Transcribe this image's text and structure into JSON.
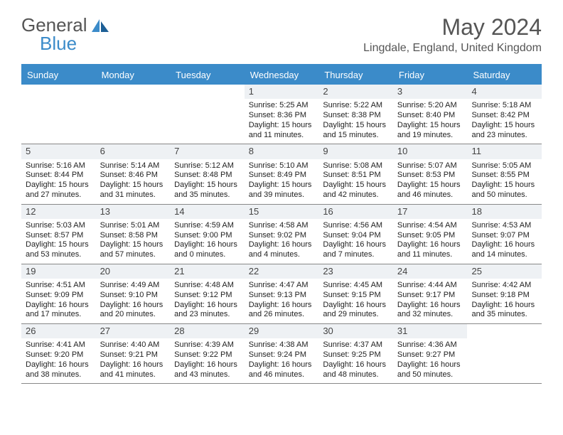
{
  "brand": {
    "general": "General",
    "blue": "Blue"
  },
  "title": "May 2024",
  "location": "Lingdale, England, United Kingdom",
  "colors": {
    "accent": "#3b8bc9",
    "header_bg": "#3b8bc9",
    "daynum_bg": "#eef1f4",
    "rule": "#888888",
    "text": "#333333"
  },
  "dayheads": [
    "Sunday",
    "Monday",
    "Tuesday",
    "Wednesday",
    "Thursday",
    "Friday",
    "Saturday"
  ],
  "weeks": [
    [
      {
        "empty": true
      },
      {
        "empty": true
      },
      {
        "empty": true
      },
      {
        "d": "1",
        "sr": "Sunrise: 5:25 AM",
        "ss": "Sunset: 8:36 PM",
        "dl1": "Daylight: 15 hours",
        "dl2": "and 11 minutes."
      },
      {
        "d": "2",
        "sr": "Sunrise: 5:22 AM",
        "ss": "Sunset: 8:38 PM",
        "dl1": "Daylight: 15 hours",
        "dl2": "and 15 minutes."
      },
      {
        "d": "3",
        "sr": "Sunrise: 5:20 AM",
        "ss": "Sunset: 8:40 PM",
        "dl1": "Daylight: 15 hours",
        "dl2": "and 19 minutes."
      },
      {
        "d": "4",
        "sr": "Sunrise: 5:18 AM",
        "ss": "Sunset: 8:42 PM",
        "dl1": "Daylight: 15 hours",
        "dl2": "and 23 minutes."
      }
    ],
    [
      {
        "d": "5",
        "sr": "Sunrise: 5:16 AM",
        "ss": "Sunset: 8:44 PM",
        "dl1": "Daylight: 15 hours",
        "dl2": "and 27 minutes."
      },
      {
        "d": "6",
        "sr": "Sunrise: 5:14 AM",
        "ss": "Sunset: 8:46 PM",
        "dl1": "Daylight: 15 hours",
        "dl2": "and 31 minutes."
      },
      {
        "d": "7",
        "sr": "Sunrise: 5:12 AM",
        "ss": "Sunset: 8:48 PM",
        "dl1": "Daylight: 15 hours",
        "dl2": "and 35 minutes."
      },
      {
        "d": "8",
        "sr": "Sunrise: 5:10 AM",
        "ss": "Sunset: 8:49 PM",
        "dl1": "Daylight: 15 hours",
        "dl2": "and 39 minutes."
      },
      {
        "d": "9",
        "sr": "Sunrise: 5:08 AM",
        "ss": "Sunset: 8:51 PM",
        "dl1": "Daylight: 15 hours",
        "dl2": "and 42 minutes."
      },
      {
        "d": "10",
        "sr": "Sunrise: 5:07 AM",
        "ss": "Sunset: 8:53 PM",
        "dl1": "Daylight: 15 hours",
        "dl2": "and 46 minutes."
      },
      {
        "d": "11",
        "sr": "Sunrise: 5:05 AM",
        "ss": "Sunset: 8:55 PM",
        "dl1": "Daylight: 15 hours",
        "dl2": "and 50 minutes."
      }
    ],
    [
      {
        "d": "12",
        "sr": "Sunrise: 5:03 AM",
        "ss": "Sunset: 8:57 PM",
        "dl1": "Daylight: 15 hours",
        "dl2": "and 53 minutes."
      },
      {
        "d": "13",
        "sr": "Sunrise: 5:01 AM",
        "ss": "Sunset: 8:58 PM",
        "dl1": "Daylight: 15 hours",
        "dl2": "and 57 minutes."
      },
      {
        "d": "14",
        "sr": "Sunrise: 4:59 AM",
        "ss": "Sunset: 9:00 PM",
        "dl1": "Daylight: 16 hours",
        "dl2": "and 0 minutes."
      },
      {
        "d": "15",
        "sr": "Sunrise: 4:58 AM",
        "ss": "Sunset: 9:02 PM",
        "dl1": "Daylight: 16 hours",
        "dl2": "and 4 minutes."
      },
      {
        "d": "16",
        "sr": "Sunrise: 4:56 AM",
        "ss": "Sunset: 9:04 PM",
        "dl1": "Daylight: 16 hours",
        "dl2": "and 7 minutes."
      },
      {
        "d": "17",
        "sr": "Sunrise: 4:54 AM",
        "ss": "Sunset: 9:05 PM",
        "dl1": "Daylight: 16 hours",
        "dl2": "and 11 minutes."
      },
      {
        "d": "18",
        "sr": "Sunrise: 4:53 AM",
        "ss": "Sunset: 9:07 PM",
        "dl1": "Daylight: 16 hours",
        "dl2": "and 14 minutes."
      }
    ],
    [
      {
        "d": "19",
        "sr": "Sunrise: 4:51 AM",
        "ss": "Sunset: 9:09 PM",
        "dl1": "Daylight: 16 hours",
        "dl2": "and 17 minutes."
      },
      {
        "d": "20",
        "sr": "Sunrise: 4:49 AM",
        "ss": "Sunset: 9:10 PM",
        "dl1": "Daylight: 16 hours",
        "dl2": "and 20 minutes."
      },
      {
        "d": "21",
        "sr": "Sunrise: 4:48 AM",
        "ss": "Sunset: 9:12 PM",
        "dl1": "Daylight: 16 hours",
        "dl2": "and 23 minutes."
      },
      {
        "d": "22",
        "sr": "Sunrise: 4:47 AM",
        "ss": "Sunset: 9:13 PM",
        "dl1": "Daylight: 16 hours",
        "dl2": "and 26 minutes."
      },
      {
        "d": "23",
        "sr": "Sunrise: 4:45 AM",
        "ss": "Sunset: 9:15 PM",
        "dl1": "Daylight: 16 hours",
        "dl2": "and 29 minutes."
      },
      {
        "d": "24",
        "sr": "Sunrise: 4:44 AM",
        "ss": "Sunset: 9:17 PM",
        "dl1": "Daylight: 16 hours",
        "dl2": "and 32 minutes."
      },
      {
        "d": "25",
        "sr": "Sunrise: 4:42 AM",
        "ss": "Sunset: 9:18 PM",
        "dl1": "Daylight: 16 hours",
        "dl2": "and 35 minutes."
      }
    ],
    [
      {
        "d": "26",
        "sr": "Sunrise: 4:41 AM",
        "ss": "Sunset: 9:20 PM",
        "dl1": "Daylight: 16 hours",
        "dl2": "and 38 minutes."
      },
      {
        "d": "27",
        "sr": "Sunrise: 4:40 AM",
        "ss": "Sunset: 9:21 PM",
        "dl1": "Daylight: 16 hours",
        "dl2": "and 41 minutes."
      },
      {
        "d": "28",
        "sr": "Sunrise: 4:39 AM",
        "ss": "Sunset: 9:22 PM",
        "dl1": "Daylight: 16 hours",
        "dl2": "and 43 minutes."
      },
      {
        "d": "29",
        "sr": "Sunrise: 4:38 AM",
        "ss": "Sunset: 9:24 PM",
        "dl1": "Daylight: 16 hours",
        "dl2": "and 46 minutes."
      },
      {
        "d": "30",
        "sr": "Sunrise: 4:37 AM",
        "ss": "Sunset: 9:25 PM",
        "dl1": "Daylight: 16 hours",
        "dl2": "and 48 minutes."
      },
      {
        "d": "31",
        "sr": "Sunrise: 4:36 AM",
        "ss": "Sunset: 9:27 PM",
        "dl1": "Daylight: 16 hours",
        "dl2": "and 50 minutes."
      },
      {
        "empty": true
      }
    ]
  ]
}
